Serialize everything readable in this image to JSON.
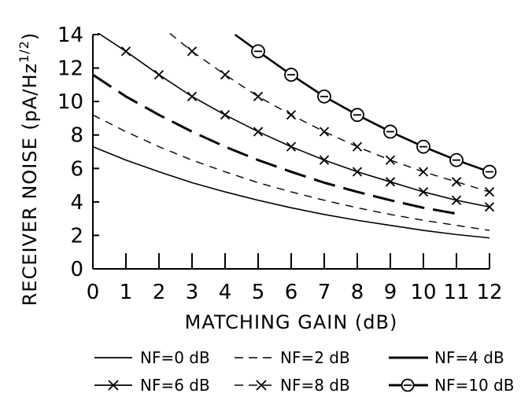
{
  "chart_data": {
    "type": "line",
    "xlabel": "MATCHING GAIN (dB)",
    "ylabel_main": "RECEIVER NOISE (pA/Hz",
    "ylabel_sup": "1/2",
    "ylabel_close": ")",
    "xlim": [
      0,
      12
    ],
    "ylim": [
      0,
      14
    ],
    "x_ticks": [
      0,
      1,
      2,
      3,
      4,
      5,
      6,
      7,
      8,
      9,
      10,
      11,
      12
    ],
    "y_ticks": [
      0,
      2,
      4,
      6,
      8,
      10,
      12,
      14
    ],
    "x_tick_labels": [
      "0",
      "1",
      "2",
      "3",
      "4",
      "5",
      "6",
      "7",
      "8",
      "9",
      "10",
      "11",
      "12"
    ],
    "y_tick_labels": [
      "0",
      "2",
      "4",
      "6",
      "8",
      "10",
      "12",
      "14"
    ],
    "grid": false,
    "series": [
      {
        "name": "NF=0 dB",
        "style": "solid-thin",
        "x": [
          0,
          1,
          2,
          3,
          4,
          5,
          6,
          7,
          8,
          9,
          10,
          11,
          12
        ],
        "y": [
          7.3,
          6.5,
          5.8,
          5.15,
          4.6,
          4.1,
          3.65,
          3.25,
          2.9,
          2.6,
          2.3,
          2.05,
          1.85
        ]
      },
      {
        "name": "NF=2 dB",
        "style": "dashed-thin",
        "x": [
          0,
          1,
          2,
          3,
          4,
          5,
          6,
          7,
          8,
          9,
          10,
          11,
          12
        ],
        "y": [
          9.2,
          8.2,
          7.3,
          6.5,
          5.8,
          5.15,
          4.6,
          4.1,
          3.65,
          3.25,
          2.9,
          2.6,
          2.3
        ]
      },
      {
        "name": "NF=4 dB",
        "style": "longdash-thick",
        "x": [
          0,
          1,
          2,
          3,
          4,
          5,
          6,
          7,
          8,
          9,
          10,
          11
        ],
        "y": [
          11.6,
          10.3,
          9.2,
          8.2,
          7.3,
          6.5,
          5.8,
          5.15,
          4.6,
          4.1,
          3.65,
          3.3
        ]
      },
      {
        "name": "NF=6 dB",
        "style": "solid-x",
        "x": [
          0,
          1,
          2,
          3,
          4,
          5,
          6,
          7,
          8,
          9,
          10,
          11,
          12
        ],
        "y": [
          14.3,
          13.0,
          11.6,
          10.3,
          9.2,
          8.2,
          7.3,
          6.5,
          5.8,
          5.2,
          4.6,
          4.1,
          3.7
        ],
        "marker_x": [
          1,
          2,
          3,
          4,
          5,
          6,
          7,
          8,
          9,
          10,
          11,
          12
        ]
      },
      {
        "name": "NF=8 dB",
        "style": "dashed-x",
        "x": [
          2,
          3,
          4,
          5,
          6,
          7,
          8,
          9,
          10,
          11,
          12
        ],
        "y": [
          14.6,
          13.0,
          11.6,
          10.3,
          9.2,
          8.2,
          7.3,
          6.5,
          5.8,
          5.2,
          4.6
        ],
        "marker_x": [
          3,
          4,
          5,
          6,
          7,
          8,
          9,
          10,
          11,
          12
        ]
      },
      {
        "name": "NF=10 dB",
        "style": "thick-circle",
        "x": [
          4.3,
          5,
          6,
          7,
          8,
          9,
          10,
          11,
          12
        ],
        "y": [
          14.0,
          13.0,
          11.6,
          10.3,
          9.2,
          8.2,
          7.3,
          6.5,
          5.8
        ],
        "marker_x": [
          5,
          6,
          7,
          8,
          9,
          10,
          11,
          12
        ]
      }
    ]
  }
}
